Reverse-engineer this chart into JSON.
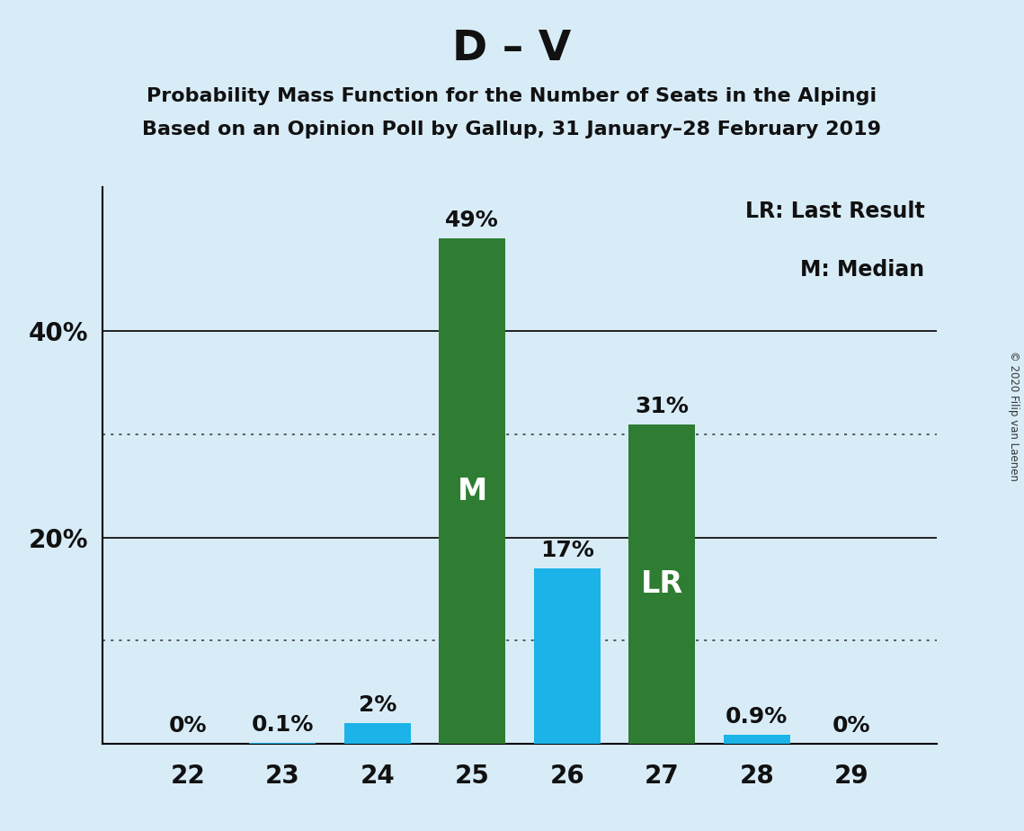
{
  "title": "D – V",
  "subtitle1": "Probability Mass Function for the Number of Seats in the Alpingi",
  "subtitle2": "Based on an Opinion Poll by Gallup, 31 January–28 February 2019",
  "copyright": "© 2020 Filip van Laenen",
  "seats": [
    22,
    23,
    24,
    25,
    26,
    27,
    28,
    29
  ],
  "values": [
    0.0,
    0.1,
    2.0,
    49.0,
    17.0,
    31.0,
    0.9,
    0.0
  ],
  "bar_colors": [
    "#1BB3E8",
    "#1BB3E8",
    "#1BB3E8",
    "#2E7D32",
    "#1BB3E8",
    "#2E7D32",
    "#1BB3E8",
    "#1BB3E8"
  ],
  "labels": [
    "0%",
    "0.1%",
    "2%",
    "49%",
    "17%",
    "31%",
    "0.9%",
    "0%"
  ],
  "bar_labels": [
    null,
    null,
    null,
    "M",
    null,
    "LR",
    null,
    null
  ],
  "ylim": [
    0,
    54
  ],
  "ytick_positions": [
    20,
    40
  ],
  "ytick_labels": [
    "20%",
    "40%"
  ],
  "solid_gridlines": [
    20,
    40
  ],
  "dotted_gridlines": [
    10,
    30
  ],
  "bg_color": "#D8ECF8",
  "title_fontsize": 34,
  "subtitle_fontsize": 16,
  "label_fontsize": 18,
  "bar_label_fontsize": 24,
  "tick_fontsize": 20,
  "legend_fontsize": 17,
  "bar_width": 0.7,
  "legend_lr": "LR: Last Result",
  "legend_m": "M: Median"
}
